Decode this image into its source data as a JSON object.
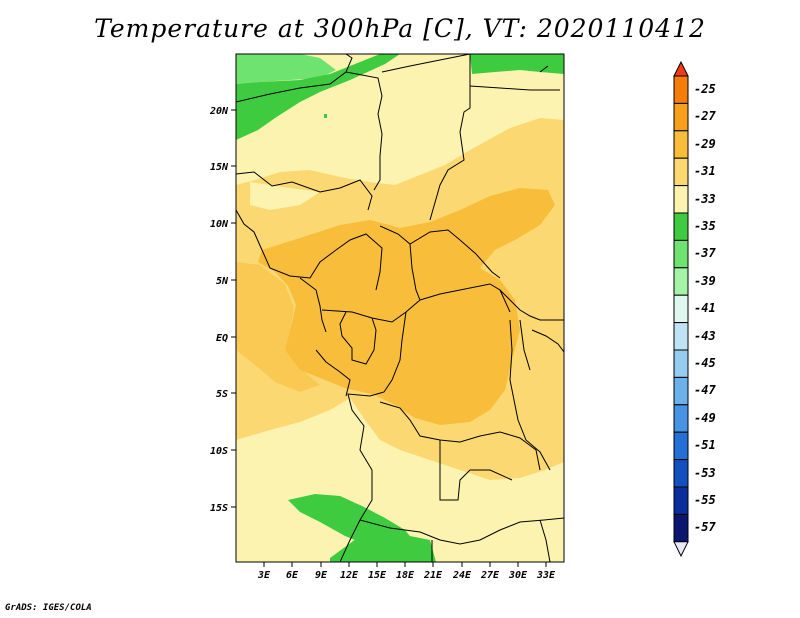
{
  "title": "Temperature at 300hPa [C], VT: 2020110412",
  "credit": "GrADS: IGES/COLA",
  "map": {
    "lat_labels": [
      "20N",
      "15N",
      "10N",
      "5N",
      "EQ",
      "5S",
      "10S",
      "15S"
    ],
    "lon_labels": [
      "3E",
      "6E",
      "9E",
      "12E",
      "15E",
      "18E",
      "21E",
      "24E",
      "27E",
      "30E",
      "33E"
    ]
  },
  "colorbar": {
    "labels": [
      "-25",
      "-27",
      "-29",
      "-31",
      "-33",
      "-35",
      "-37",
      "-39",
      "-41",
      "-43",
      "-45",
      "-47",
      "-49",
      "-51",
      "-53",
      "-55",
      "-57"
    ],
    "colors": [
      "#f03c14",
      "#f57d0a",
      "#f7a01e",
      "#f9bd3c",
      "#fbd872",
      "#fdf3b0",
      "#3fcb3f",
      "#6fe36f",
      "#a6f2a6",
      "#dff7ee",
      "#bfe3f5",
      "#95ccf0",
      "#6cb1ea",
      "#4793e4",
      "#2370d6",
      "#1250bd",
      "#0a2e9a",
      "#0a1670",
      "#e8e8f8"
    ]
  },
  "colors": {
    "t_le_35": "#fdf3b0",
    "t_33_31": "#fbd872",
    "t_31_29": "#f9bd3c",
    "t_35_37": "#3fcb3f",
    "t_37_39": "#6fe36f"
  }
}
